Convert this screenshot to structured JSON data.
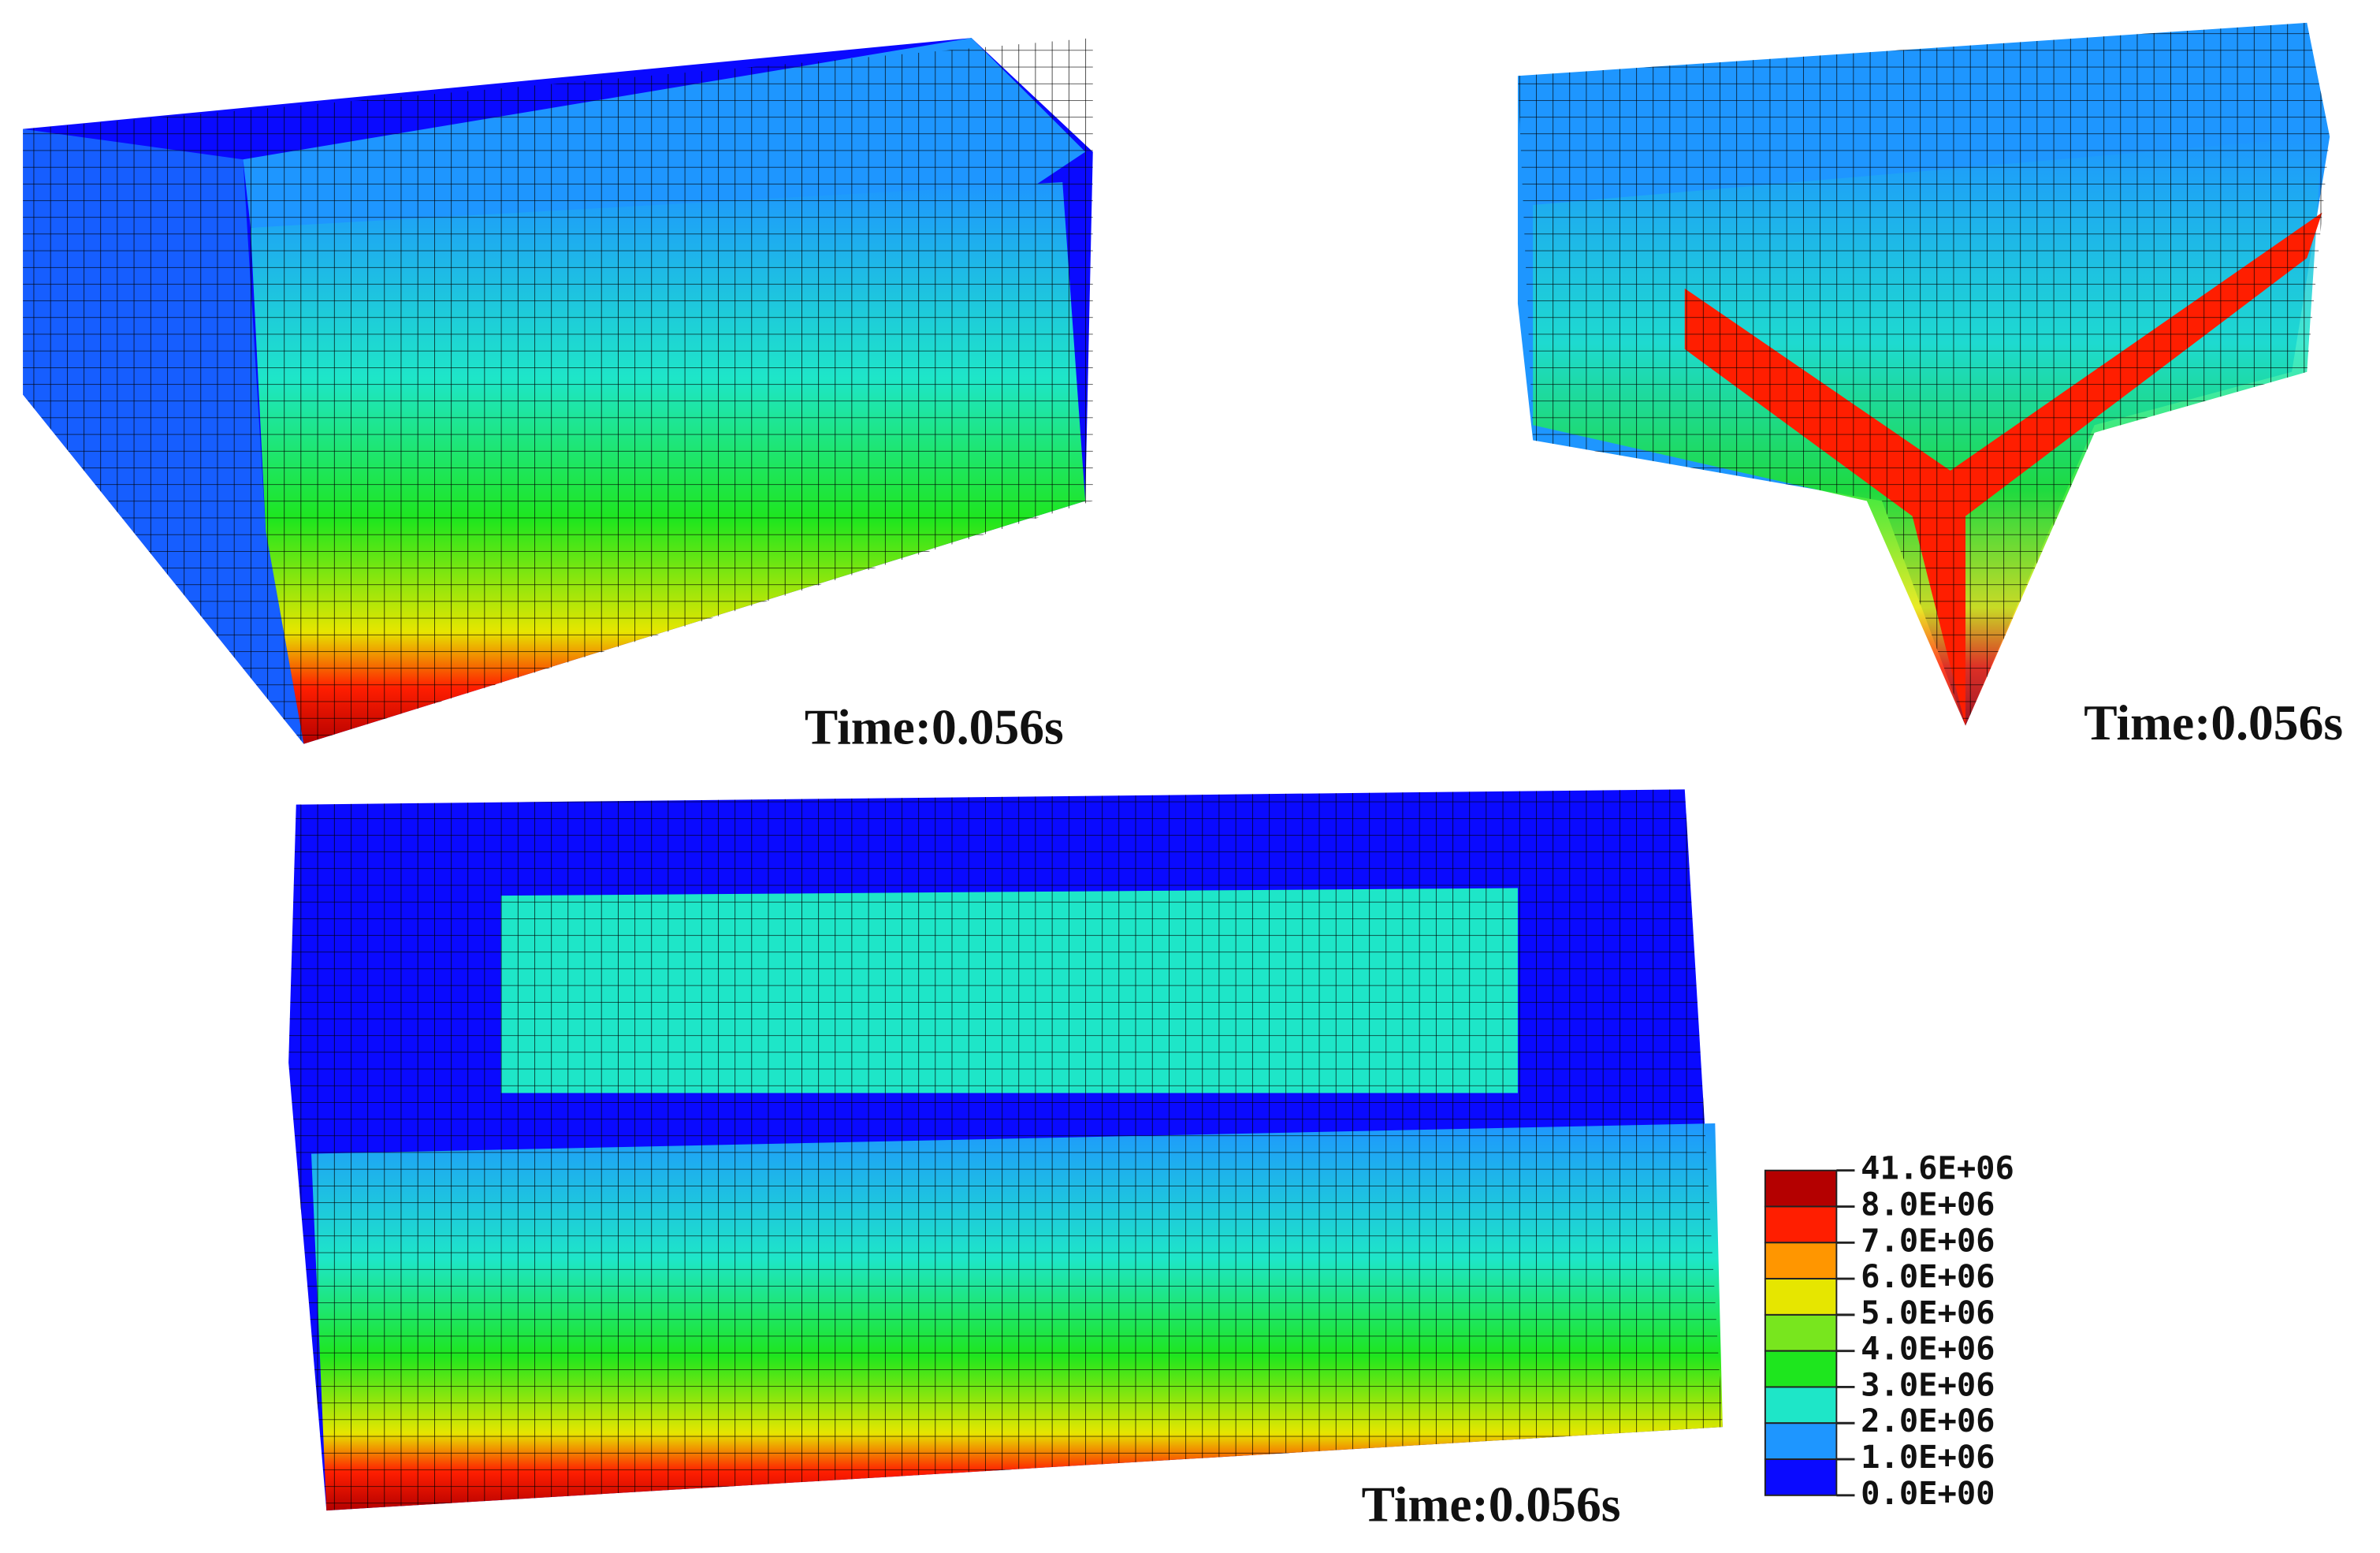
{
  "panels": [
    {
      "caption": "Time:0.056s"
    },
    {
      "caption": "Time:0.056s"
    },
    {
      "caption": "Time:0.056s"
    }
  ],
  "legend": {
    "labels": [
      "41.6E+06",
      "8.0E+06",
      "7.0E+06",
      "6.0E+06",
      "5.0E+06",
      "4.0E+06",
      "3.0E+06",
      "2.0E+06",
      "1.0E+06",
      "0.0E+00"
    ],
    "colors": [
      "#b40000",
      "#ff1e00",
      "#ff9600",
      "#e6e600",
      "#78e61e",
      "#1ee61e",
      "#1ee6c8",
      "#1e96ff",
      "#0a0aff"
    ]
  }
}
